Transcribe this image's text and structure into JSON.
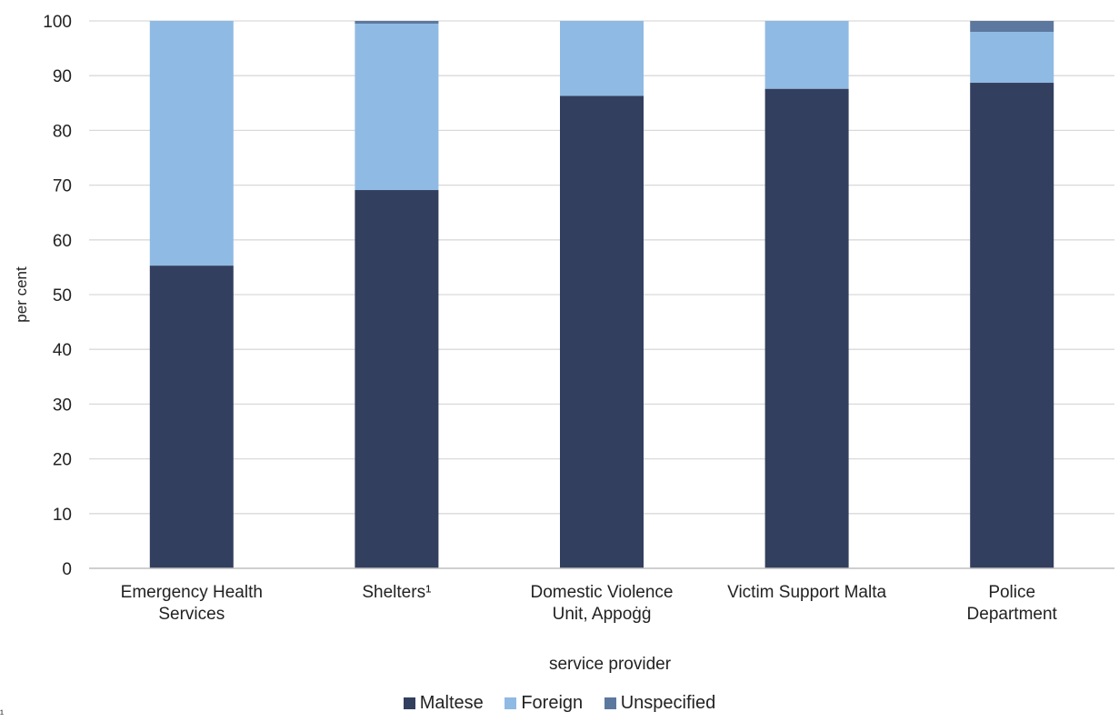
{
  "chart_data": {
    "type": "bar",
    "stacked": true,
    "categories": [
      [
        "Emergency Health",
        "Services"
      ],
      [
        "Shelters¹"
      ],
      [
        "Domestic Violence",
        "Unit, Appoġġ"
      ],
      [
        "Victim Support Malta"
      ],
      [
        "Police",
        "Department"
      ]
    ],
    "series": [
      {
        "name": "Maltese",
        "color": "#333f5e",
        "values": [
          55.3,
          69.1,
          86.3,
          87.6,
          88.7
        ]
      },
      {
        "name": "Foreign",
        "color": "#8fbae3",
        "values": [
          44.7,
          30.4,
          13.7,
          12.4,
          9.3
        ]
      },
      {
        "name": "Unspecified",
        "color": "#5d789f",
        "values": [
          0.0,
          0.5,
          0.0,
          0.0,
          2.0
        ]
      }
    ],
    "xlabel": "service provider",
    "ylabel": "per cent",
    "ylim": [
      0,
      100
    ],
    "yticks": [
      0,
      10,
      20,
      30,
      40,
      50,
      60,
      70,
      80,
      90,
      100
    ],
    "grid": true,
    "legend_position": "bottom"
  },
  "legend": {
    "maltese": "Maltese",
    "foreign": "Foreign",
    "unspecified": "Unspecified"
  },
  "footnote_mark": "¹"
}
